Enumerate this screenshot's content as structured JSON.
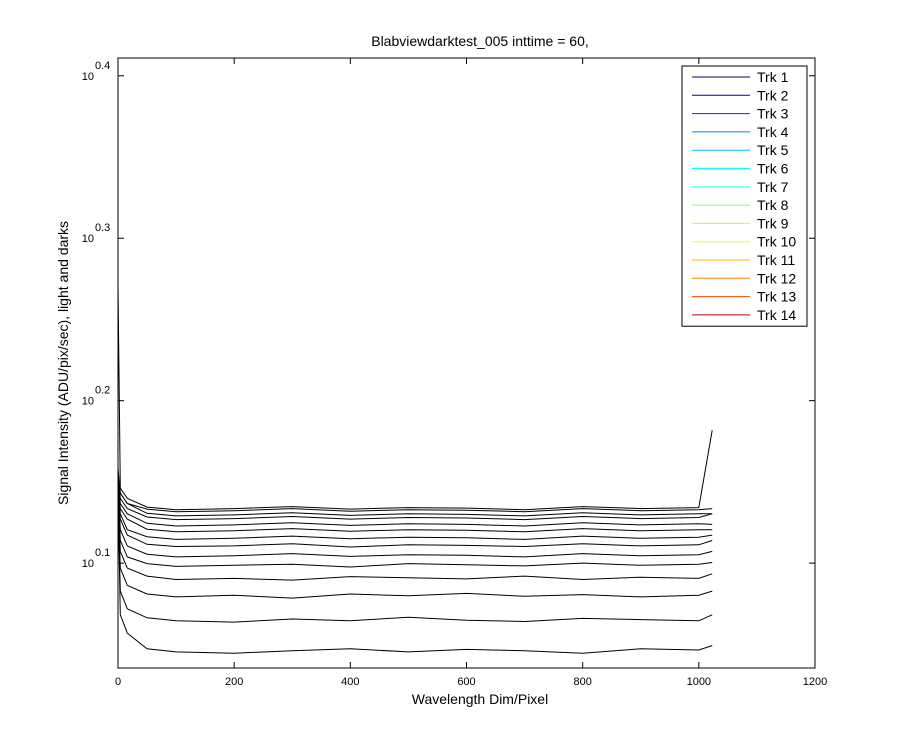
{
  "chart_data": {
    "type": "line",
    "title": "Blabviewdarktest_005 inttime = 60,",
    "xlabel": "Wavelength Dim/Pixel",
    "ylabel": "Signal Intensity (ADU/pix/sec), light and darks",
    "yscale": "log",
    "line_color": "#000000",
    "legend": "upper right",
    "xlim": [
      0,
      1200
    ],
    "xticks": [
      0,
      200,
      400,
      600,
      800,
      1000,
      1200
    ],
    "ylim": [
      1.085,
      2.576
    ],
    "yticks": [
      {
        "value": 1.2589254,
        "label": "10",
        "exponent": "0.1"
      },
      {
        "value": 1.5848932,
        "label": "10",
        "exponent": "0.2"
      },
      {
        "value": 1.9952623,
        "label": "10",
        "exponent": "0.3"
      },
      {
        "value": 2.5118864,
        "label": "10",
        "exponent": "0.4"
      }
    ],
    "x": [
      0,
      4,
      16,
      50,
      100,
      200,
      300,
      400,
      500,
      600,
      700,
      800,
      900,
      1000,
      1023
    ],
    "series": [
      {
        "name": "Trk 1",
        "color": "#000080",
        "values": [
          1.4,
          1.17,
          1.14,
          1.115,
          1.11,
          1.108,
          1.112,
          1.115,
          1.11,
          1.114,
          1.112,
          1.108,
          1.115,
          1.113,
          1.12
        ]
      },
      {
        "name": "Trk 2",
        "color": "#0000c0",
        "values": [
          1.38,
          1.21,
          1.18,
          1.165,
          1.16,
          1.158,
          1.163,
          1.16,
          1.166,
          1.161,
          1.159,
          1.164,
          1.162,
          1.16,
          1.17
        ]
      },
      {
        "name": "Trk 3",
        "color": "#0030ff",
        "values": [
          1.39,
          1.25,
          1.22,
          1.205,
          1.2,
          1.203,
          1.198,
          1.205,
          1.202,
          1.206,
          1.201,
          1.204,
          1.2,
          1.203,
          1.21
        ]
      },
      {
        "name": "Trk 4",
        "color": "#0080ff",
        "values": [
          1.4,
          1.28,
          1.25,
          1.236,
          1.23,
          1.232,
          1.229,
          1.235,
          1.233,
          1.231,
          1.236,
          1.23,
          1.234,
          1.232,
          1.24
        ]
      },
      {
        "name": "Trk 5",
        "color": "#00bfff",
        "values": [
          1.41,
          1.3,
          1.27,
          1.258,
          1.253,
          1.255,
          1.257,
          1.252,
          1.258,
          1.256,
          1.254,
          1.259,
          1.255,
          1.257,
          1.26
        ]
      },
      {
        "name": "Trk 6",
        "color": "#00ffff",
        "values": [
          1.41,
          1.32,
          1.29,
          1.275,
          1.27,
          1.272,
          1.276,
          1.271,
          1.274,
          1.273,
          1.27,
          1.276,
          1.272,
          1.274,
          1.28
        ]
      },
      {
        "name": "Trk 7",
        "color": "#40ffbf",
        "values": [
          1.42,
          1.34,
          1.31,
          1.293,
          1.289,
          1.29,
          1.294,
          1.288,
          1.292,
          1.291,
          1.289,
          1.294,
          1.29,
          1.292,
          1.3
        ]
      },
      {
        "name": "Trk 8",
        "color": "#80ff80",
        "values": [
          1.42,
          1.35,
          1.32,
          1.307,
          1.302,
          1.304,
          1.308,
          1.303,
          1.306,
          1.305,
          1.302,
          1.308,
          1.304,
          1.306,
          1.31
        ]
      },
      {
        "name": "Trk 9",
        "color": "#bfff40",
        "values": [
          1.42,
          1.36,
          1.34,
          1.321,
          1.316,
          1.318,
          1.322,
          1.317,
          1.32,
          1.319,
          1.316,
          1.322,
          1.318,
          1.32,
          1.32
        ]
      },
      {
        "name": "Trk 10",
        "color": "#ffff00",
        "values": [
          1.43,
          1.37,
          1.35,
          1.332,
          1.327,
          1.329,
          1.333,
          1.328,
          1.331,
          1.33,
          1.327,
          1.333,
          1.329,
          1.331,
          1.33
        ]
      },
      {
        "name": "Trk 11",
        "color": "#ffbf00",
        "values": [
          1.43,
          1.38,
          1.36,
          1.344,
          1.339,
          1.341,
          1.345,
          1.34,
          1.343,
          1.342,
          1.339,
          1.345,
          1.341,
          1.343,
          1.35
        ]
      },
      {
        "name": "Trk 12",
        "color": "#ff8000",
        "values": [
          1.43,
          1.39,
          1.37,
          1.351,
          1.346,
          1.348,
          1.352,
          1.347,
          1.35,
          1.349,
          1.346,
          1.352,
          1.348,
          1.35,
          1.35
        ]
      },
      {
        "name": "Trk 13",
        "color": "#ff4000",
        "values": [
          1.44,
          1.39,
          1.37,
          1.359,
          1.354,
          1.356,
          1.36,
          1.355,
          1.358,
          1.357,
          1.354,
          1.36,
          1.356,
          1.358,
          1.36
        ]
      },
      {
        "name": "Trk 14",
        "color": "#c00000",
        "values": [
          1.87,
          1.4,
          1.38,
          1.363,
          1.358,
          1.36,
          1.364,
          1.359,
          1.362,
          1.361,
          1.358,
          1.364,
          1.36,
          1.362,
          1.52
        ]
      }
    ]
  }
}
